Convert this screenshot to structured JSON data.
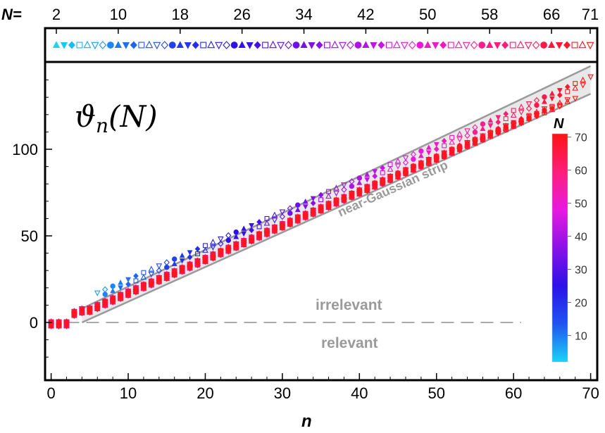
{
  "chart_data": {
    "type": "scatter",
    "math_label": "ϑn(N)",
    "xlabel": "n",
    "top_axis_label": "N=",
    "top_ticks": [
      "2",
      "10",
      "18",
      "26",
      "34",
      "42",
      "50",
      "58",
      "66",
      "71"
    ],
    "x_ticks": [
      "0",
      "10",
      "20",
      "30",
      "40",
      "50",
      "60",
      "70"
    ],
    "y_ticks": [
      "0",
      "50",
      "100"
    ],
    "xlim": [
      -1,
      71
    ],
    "ylim": [
      -30,
      148
    ],
    "grid": false,
    "region_labels": {
      "upper": "irrelevant",
      "lower": "relevant"
    },
    "strip_label": "near-Gaussian strip",
    "zero_line": {
      "y": 0,
      "style": "dashed"
    },
    "strip": {
      "lower": [
        [
          4,
          0
        ],
        [
          70,
          132
        ]
      ],
      "upper": [
        [
          4,
          8
        ],
        [
          70,
          148
        ]
      ]
    },
    "colorbar": {
      "title": "N",
      "ticks": [
        "10",
        "20",
        "30",
        "40",
        "50",
        "60",
        "70"
      ],
      "range": [
        2,
        71
      ],
      "colors": [
        "#1ad3f5",
        "#1f55f0",
        "#2a12e6",
        "#8a12e6",
        "#e61ae0",
        "#ff1e7a",
        "#ff1414"
      ]
    },
    "series_note": "Each N from 2 to 71 has points n = 0..N-1 with values theta_n(N); marker shape cycles with N and color encodes N.",
    "marker_cycle": [
      "triangle-up",
      "triangle-down",
      "diamond",
      "square-open",
      "triangle-up-open",
      "triangle-down-open",
      "diamond-open",
      "circle"
    ],
    "sample_points": [
      {
        "n": 0,
        "value": -2
      },
      {
        "n": 1,
        "value": -2
      },
      {
        "n": 2,
        "value": -2
      },
      {
        "n": 4,
        "value": 4
      },
      {
        "n": 8,
        "value": 12
      },
      {
        "n": 10,
        "value": 18
      },
      {
        "n": 15,
        "value": 27
      },
      {
        "n": 20,
        "value": 40
      },
      {
        "n": 25,
        "value": 50
      },
      {
        "n": 30,
        "value": 62
      },
      {
        "n": 35,
        "value": 72
      },
      {
        "n": 40,
        "value": 80
      },
      {
        "n": 45,
        "value": 88
      },
      {
        "n": 50,
        "value": 98
      },
      {
        "n": 55,
        "value": 108
      },
      {
        "n": 60,
        "value": 118
      },
      {
        "n": 65,
        "value": 128
      },
      {
        "n": 70,
        "value": 140
      }
    ]
  }
}
